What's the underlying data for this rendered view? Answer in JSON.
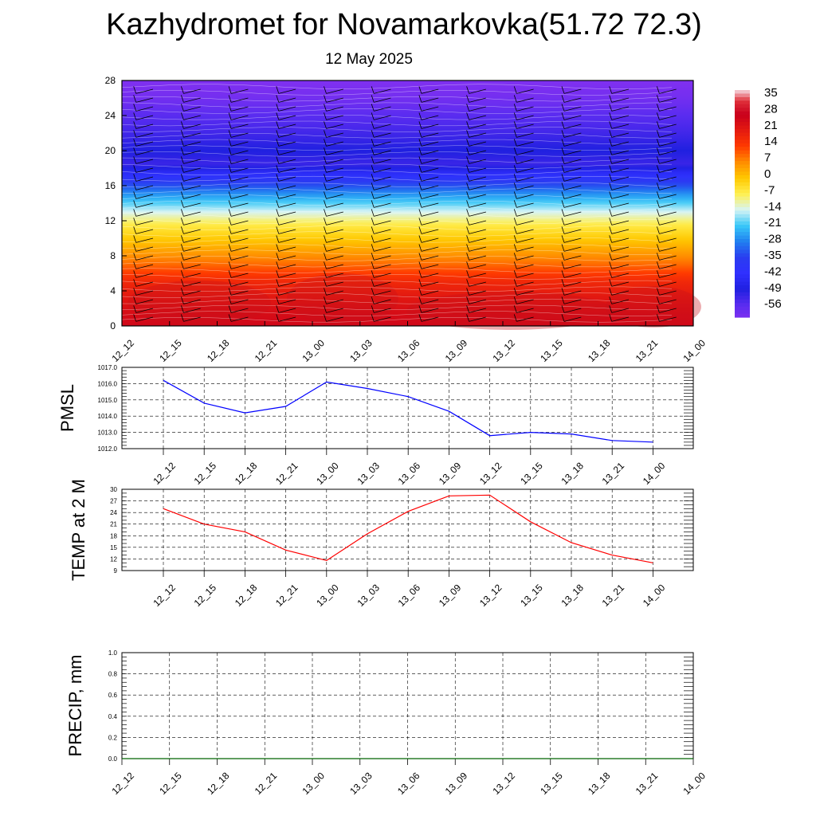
{
  "title": "Kazhydromet for Novamarkovka(51.72 72.3)",
  "subtitle": "12 May 2025",
  "time_labels": [
    "12_12",
    "12_15",
    "12_18",
    "12_21",
    "13_00",
    "13_03",
    "13_06",
    "13_09",
    "13_12",
    "13_15",
    "13_18",
    "13_21",
    "14_00"
  ],
  "colors": {
    "pmsl_line": "#0000ff",
    "temp_line": "#ff0000",
    "precip_line": "#006400",
    "barb": "#000000",
    "contour": "#ffffff"
  },
  "chart_data": [
    {
      "type": "heatmap",
      "name": "temperature-wind-cross-section",
      "x_categories": [
        "12_12",
        "12_15",
        "12_18",
        "12_21",
        "13_00",
        "13_03",
        "13_06",
        "13_09",
        "13_12",
        "13_15",
        "13_18",
        "13_21",
        "14_00"
      ],
      "y_ticks": [
        0,
        4,
        8,
        12,
        16,
        20,
        24,
        28
      ],
      "ylim": [
        0,
        28
      ],
      "colorbar_labels": [
        "35",
        "28",
        "21",
        "14",
        "7",
        "0",
        "-7",
        "-14",
        "-21",
        "-28",
        "-35",
        "-42",
        "-49",
        "-56"
      ],
      "colorbar_stops": [
        {
          "v": 38,
          "c": "#f2c0c8"
        },
        {
          "v": 34,
          "c": "#e0303a"
        },
        {
          "v": 28,
          "c": "#c8001c"
        },
        {
          "v": 21,
          "c": "#e41a10"
        },
        {
          "v": 14,
          "c": "#ff3a00"
        },
        {
          "v": 7,
          "c": "#ff8c00"
        },
        {
          "v": 0,
          "c": "#ffc800"
        },
        {
          "v": -7,
          "c": "#fff050"
        },
        {
          "v": -14,
          "c": "#d8f4f4"
        },
        {
          "v": -21,
          "c": "#38c8f8"
        },
        {
          "v": -28,
          "c": "#2080f0"
        },
        {
          "v": -35,
          "c": "#2a3cf0"
        },
        {
          "v": -42,
          "c": "#3030ff"
        },
        {
          "v": -49,
          "c": "#2020e0"
        },
        {
          "v": -56,
          "c": "#5a2cf0"
        },
        {
          "v": -62,
          "c": "#8030f0"
        }
      ],
      "vertical_profile": [
        {
          "y": 0,
          "v": 26
        },
        {
          "y": 2,
          "v": 24
        },
        {
          "y": 5,
          "v": 18
        },
        {
          "y": 7,
          "v": 10
        },
        {
          "y": 9,
          "v": 3
        },
        {
          "y": 11.5,
          "v": -6
        },
        {
          "y": 13,
          "v": -14
        },
        {
          "y": 15,
          "v": -26
        },
        {
          "y": 17,
          "v": -40
        },
        {
          "y": 18.5,
          "v": -52
        },
        {
          "y": 20,
          "v": -49
        },
        {
          "y": 22,
          "v": -53
        },
        {
          "y": 24,
          "v": -56
        },
        {
          "y": 26,
          "v": -60
        },
        {
          "y": 28,
          "v": -62
        }
      ],
      "barb_levels": [
        1,
        2,
        3,
        4,
        5,
        6,
        7,
        8,
        9,
        10,
        11,
        12,
        13,
        14,
        15,
        16,
        17,
        18,
        19,
        20,
        21,
        22,
        23,
        24,
        25,
        26,
        27
      ]
    },
    {
      "type": "line",
      "name": "PMSL",
      "ylabel": "PMSL",
      "categories": [
        "12_12",
        "12_15",
        "12_18",
        "12_21",
        "13_00",
        "13_03",
        "13_06",
        "13_09",
        "13_12",
        "13_15",
        "13_18",
        "13_21",
        "14_00"
      ],
      "values": [
        1016.2,
        1014.8,
        1014.2,
        1014.6,
        1016.1,
        1015.7,
        1015.2,
        1014.3,
        1012.8,
        1013.0,
        1012.9,
        1012.5,
        1012.4
      ],
      "ylim": [
        1012.0,
        1017.0
      ],
      "y_ticks": [
        "1012.0",
        "1013.0",
        "1014.0",
        "1015.0",
        "1016.0",
        "1017.0"
      ],
      "grid": true
    },
    {
      "type": "line",
      "name": "TEMP",
      "ylabel": "TEMP at 2 M",
      "categories": [
        "12_12",
        "12_15",
        "12_18",
        "12_21",
        "13_00",
        "13_03",
        "13_06",
        "13_09",
        "13_12",
        "13_15",
        "13_18",
        "13_21",
        "14_00"
      ],
      "values": [
        25,
        21,
        19,
        14.3,
        11.6,
        18.5,
        24.3,
        28.3,
        28.5,
        21.6,
        16.2,
        13,
        11
      ],
      "ylim": [
        9,
        30
      ],
      "y_ticks": [
        "9",
        "12",
        "15",
        "18",
        "21",
        "24",
        "27",
        "30"
      ],
      "grid": true
    },
    {
      "type": "line",
      "name": "PRECIP",
      "ylabel": "PRECIP, mm",
      "categories": [
        "12_12",
        "12_15",
        "12_18",
        "12_21",
        "13_00",
        "13_03",
        "13_06",
        "13_09",
        "13_12",
        "13_15",
        "13_18",
        "13_21",
        "14_00"
      ],
      "values": [
        0,
        0,
        0,
        0,
        0,
        0,
        0,
        0,
        0,
        0,
        0,
        0,
        0
      ],
      "ylim": [
        0.0,
        1.0
      ],
      "y_ticks": [
        "0.0",
        "0.2",
        "0.4",
        "0.6",
        "0.8",
        "1.0"
      ],
      "grid": true
    }
  ]
}
